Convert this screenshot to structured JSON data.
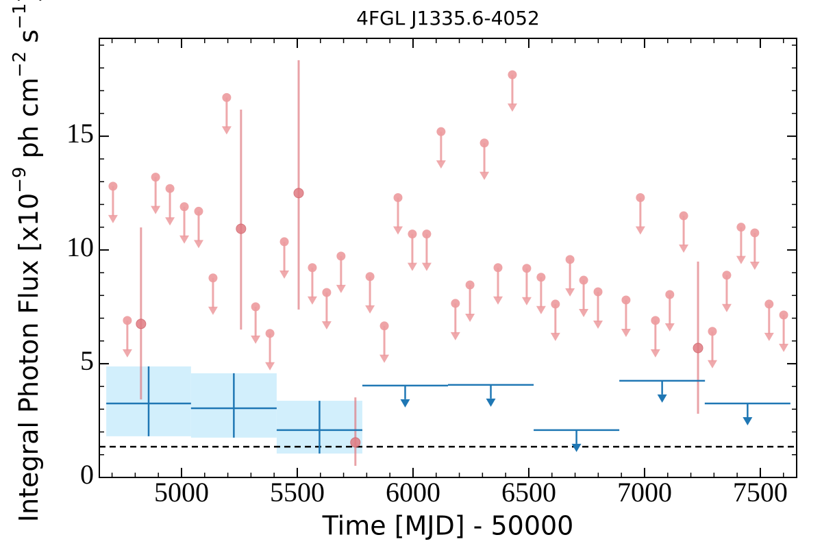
{
  "chart_data": {
    "type": "lightcurve",
    "title": "4FGL J1335.6-4052",
    "xlabel": "Time [MJD] - 50000",
    "ylabel": [
      {
        "text": "Integral Photon Flux [x10"
      },
      {
        "text": "−9",
        "sup": true
      },
      {
        "text": " ph cm"
      },
      {
        "text": "−2",
        "sup": true
      },
      {
        "text": " s"
      },
      {
        "text": "−1",
        "sup": true
      },
      {
        "text": "]"
      }
    ],
    "xlim": [
      4645,
      7657
    ],
    "ylim": [
      0,
      19.3
    ],
    "xticks": [
      5000,
      5500,
      6000,
      6500,
      7000,
      7500
    ],
    "yticks": [
      0,
      5,
      10,
      15
    ],
    "xminor_step": 100,
    "yminor_step": 1,
    "series": [
      {
        "kind": "upper_limit",
        "color": "#ec9a9d",
        "x": [
          4704,
          4766,
          4888,
          4950,
          5012,
          5074,
          5136,
          5195,
          5320,
          5382,
          5444,
          5565,
          5627,
          5689,
          5814,
          5876,
          5935,
          5997,
          6059,
          6121,
          6183,
          6246,
          6308,
          6367,
          6429,
          6491,
          6553,
          6615,
          6678,
          6737,
          6799,
          6920,
          6982,
          7047,
          7109,
          7169,
          7293,
          7355,
          7417,
          7476,
          7538,
          7601
        ],
        "values": [
          12.8,
          6.9,
          13.2,
          12.7,
          11.9,
          11.7,
          8.77,
          16.7,
          7.5,
          6.33,
          10.36,
          9.22,
          8.13,
          9.73,
          8.83,
          6.66,
          12.3,
          10.7,
          10.7,
          15.2,
          7.65,
          8.46,
          14.7,
          9.22,
          17.7,
          9.19,
          8.8,
          7.62,
          9.58,
          8.67,
          8.16,
          7.8,
          12.3,
          6.9,
          8.04,
          11.5,
          6.42,
          8.89,
          11.0,
          10.75,
          7.62,
          7.14
        ]
      },
      {
        "kind": "detection",
        "color": "#e07b82",
        "x": [
          4825,
          5257,
          5506,
          5751,
          7231
        ],
        "values": [
          6.75,
          10.93,
          12.5,
          1.54,
          5.69
        ],
        "yerr_low": [
          3.32,
          4.43,
          5.12,
          1.03,
          2.89
        ],
        "yerr_high": [
          4.24,
          5.24,
          5.84,
          1.98,
          3.8
        ]
      },
      {
        "kind": "binned_detection",
        "color": "#1f77b4",
        "fill": "#d2effc",
        "x": [
          4858,
          5226,
          5596
        ],
        "xerr": [
          183,
          185,
          185
        ],
        "values": [
          3.25,
          3.04,
          2.08
        ],
        "yerr_low": [
          1.44,
          1.29,
          1.03
        ],
        "yerr_high": [
          1.63,
          1.54,
          1.29
        ]
      },
      {
        "kind": "binned_upper_limit",
        "color": "#1f77b4",
        "x": [
          5966,
          6336,
          6706,
          7076,
          7445
        ],
        "xerr": [
          185,
          185,
          185,
          185,
          185
        ],
        "values": [
          4.04,
          4.07,
          2.08,
          4.25,
          3.25
        ]
      }
    ],
    "reference_line": {
      "value": 1.35,
      "color": "#000000",
      "style": "dashed"
    }
  }
}
